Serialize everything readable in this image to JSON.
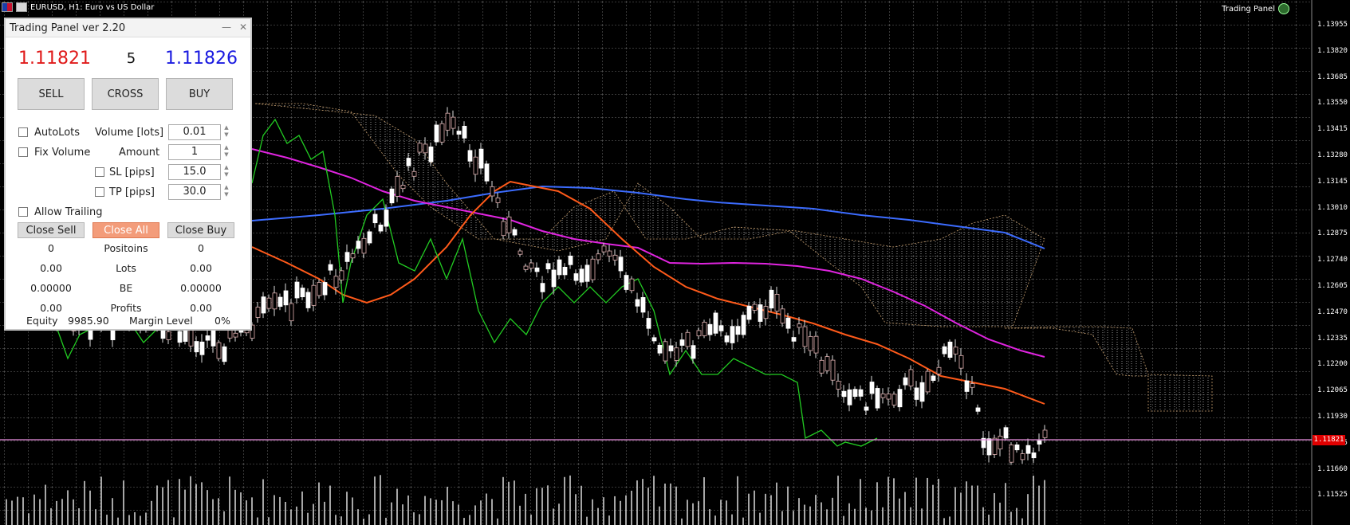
{
  "window": {
    "symbol_title": "EURUSD, H1:  Euro vs US Dollar",
    "indicator_label": "Trading Panel"
  },
  "price_axis": [
    "1.13955",
    "1.13820",
    "1.13685",
    "1.13550",
    "1.13415",
    "1.13280",
    "1.13145",
    "1.13010",
    "1.12875",
    "1.12740",
    "1.12605",
    "1.12470",
    "1.12335",
    "1.12200",
    "1.12065",
    "1.11930",
    "1.11795",
    "1.11660",
    "1.11525"
  ],
  "current_price_tag": "1.11821",
  "panel": {
    "title": "Trading Panel ver 2.20",
    "bid": "1.11821",
    "spread": "5",
    "ask": "1.11826",
    "sell_label": "SELL",
    "cross_label": "CROSS",
    "buy_label": "BUY",
    "autolots_label": "AutoLots",
    "volume_label": "Volume [lots]",
    "volume_value": "0.01",
    "fixvolume_label": "Fix Volume",
    "amount_label": "Amount",
    "amount_value": "1",
    "sl_label": "SL [pips]",
    "sl_value": "15.0",
    "tp_label": "TP [pips]",
    "tp_value": "30.0",
    "trailing_label": "Allow Trailing",
    "close_sell_label": "Close Sell",
    "close_all_label": "Close All",
    "close_buy_label": "Close Buy",
    "stats": {
      "positions_label": "Positoins",
      "positions_sell": "0",
      "positions_buy": "0",
      "lots_label": "Lots",
      "lots_sell": "0.00",
      "lots_buy": "0.00",
      "be_label": "BE",
      "be_sell": "0.00000",
      "be_buy": "0.00000",
      "profits_label": "Profits",
      "profits_sell": "0.00",
      "profits_buy": "0.00"
    },
    "equity_label": "Equity",
    "equity_value": "9985.90",
    "margin_label": "Margin Level",
    "margin_value": "0%"
  },
  "colors": {
    "grid": "#6e6e6e",
    "ma_orange": "#ff5a1a",
    "ma_magenta": "#e024e0",
    "ma_blue": "#3c6cff",
    "line_green": "#22cc22",
    "close_all": "#f39c7a"
  }
}
